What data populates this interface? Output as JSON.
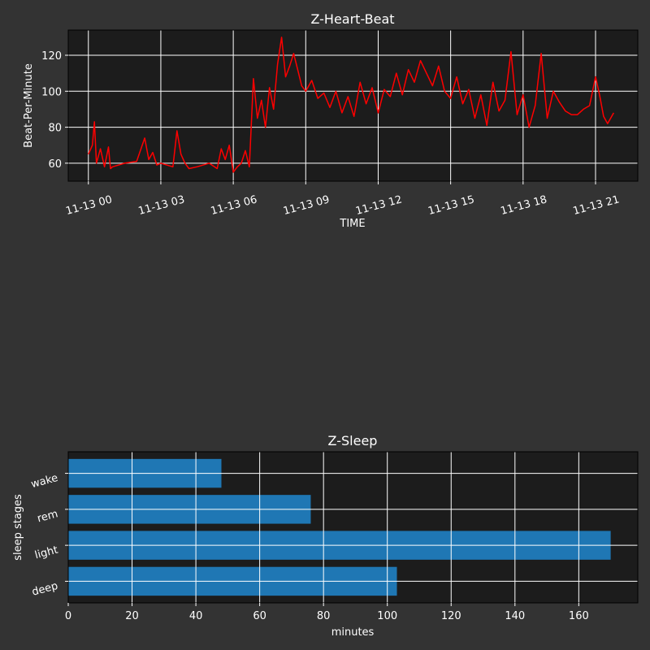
{
  "theme": {
    "figure_bg": "#333333",
    "axes_bg": "#1c1c1c",
    "grid": "#ffffff",
    "text": "#ffffff",
    "line_color": "#ff0000",
    "bar_color": "#1f77b4"
  },
  "chart_data": [
    {
      "type": "line",
      "title": "Z-Heart-Beat",
      "xlabel": "TIME",
      "ylabel": "Beat-Per-Minute",
      "x_is_time": true,
      "xlim": [
        "2020-11-12 23:10",
        "2020-11-13 22:45"
      ],
      "ylim": [
        50,
        134
      ],
      "grid": true,
      "xticks": [
        {
          "value": "2020-11-13 00:00",
          "label": "11-13 00"
        },
        {
          "value": "2020-11-13 03:00",
          "label": "11-13 03"
        },
        {
          "value": "2020-11-13 06:00",
          "label": "11-13 06"
        },
        {
          "value": "2020-11-13 09:00",
          "label": "11-13 09"
        },
        {
          "value": "2020-11-13 12:00",
          "label": "11-13 12"
        },
        {
          "value": "2020-11-13 15:00",
          "label": "11-13 15"
        },
        {
          "value": "2020-11-13 18:00",
          "label": "11-13 18"
        },
        {
          "value": "2020-11-13 21:00",
          "label": "11-13 21"
        }
      ],
      "yticks": [
        60,
        80,
        100,
        120
      ],
      "series": [
        {
          "x": [
            "2020-11-13 00:00",
            "2020-11-13 00:10",
            "2020-11-13 00:15",
            "2020-11-13 00:20",
            "2020-11-13 00:30",
            "2020-11-13 00:40",
            "2020-11-13 00:50",
            "2020-11-13 00:55",
            "2020-11-13 01:00",
            "2020-11-13 01:30",
            "2020-11-13 02:00",
            "2020-11-13 02:20",
            "2020-11-13 02:30",
            "2020-11-13 02:40",
            "2020-11-13 02:50",
            "2020-11-13 03:00",
            "2020-11-13 03:30",
            "2020-11-13 03:40",
            "2020-11-13 03:50",
            "2020-11-13 04:00",
            "2020-11-13 04:10",
            "2020-11-13 04:30",
            "2020-11-13 05:00",
            "2020-11-13 05:20",
            "2020-11-13 05:30",
            "2020-11-13 05:40",
            "2020-11-13 05:50",
            "2020-11-13 06:00",
            "2020-11-13 06:10",
            "2020-11-13 06:20",
            "2020-11-13 06:30",
            "2020-11-13 06:40",
            "2020-11-13 06:50",
            "2020-11-13 07:00",
            "2020-11-13 07:10",
            "2020-11-13 07:20",
            "2020-11-13 07:30",
            "2020-11-13 07:40",
            "2020-11-13 07:50",
            "2020-11-13 08:00",
            "2020-11-13 08:10",
            "2020-11-13 08:20",
            "2020-11-13 08:30",
            "2020-11-13 08:40",
            "2020-11-13 08:50",
            "2020-11-13 09:00",
            "2020-11-13 09:15",
            "2020-11-13 09:30",
            "2020-11-13 09:45",
            "2020-11-13 10:00",
            "2020-11-13 10:15",
            "2020-11-13 10:30",
            "2020-11-13 10:45",
            "2020-11-13 11:00",
            "2020-11-13 11:15",
            "2020-11-13 11:30",
            "2020-11-13 11:45",
            "2020-11-13 12:00",
            "2020-11-13 12:15",
            "2020-11-13 12:30",
            "2020-11-13 12:45",
            "2020-11-13 13:00",
            "2020-11-13 13:15",
            "2020-11-13 13:30",
            "2020-11-13 13:45",
            "2020-11-13 14:00",
            "2020-11-13 14:15",
            "2020-11-13 14:30",
            "2020-11-13 14:45",
            "2020-11-13 15:00",
            "2020-11-13 15:15",
            "2020-11-13 15:30",
            "2020-11-13 15:45",
            "2020-11-13 16:00",
            "2020-11-13 16:15",
            "2020-11-13 16:30",
            "2020-11-13 16:45",
            "2020-11-13 17:00",
            "2020-11-13 17:15",
            "2020-11-13 17:30",
            "2020-11-13 17:45",
            "2020-11-13 18:00",
            "2020-11-13 18:15",
            "2020-11-13 18:30",
            "2020-11-13 18:45",
            "2020-11-13 19:00",
            "2020-11-13 19:15",
            "2020-11-13 19:30",
            "2020-11-13 19:45",
            "2020-11-13 20:00",
            "2020-11-13 20:15",
            "2020-11-13 20:30",
            "2020-11-13 20:45",
            "2020-11-13 21:00",
            "2020-11-13 21:10",
            "2020-11-13 21:20",
            "2020-11-13 21:30",
            "2020-11-13 21:45"
          ],
          "y": [
            65,
            70,
            83,
            60,
            68,
            58,
            69,
            57,
            58,
            60,
            61,
            74,
            62,
            66,
            59,
            60,
            58,
            78,
            65,
            60,
            57,
            58,
            60,
            57,
            68,
            62,
            70,
            55,
            58,
            60,
            67,
            58,
            107,
            85,
            95,
            80,
            102,
            90,
            115,
            130,
            108,
            114,
            121,
            112,
            103,
            100,
            106,
            96,
            99,
            91,
            100,
            88,
            97,
            86,
            105,
            93,
            102,
            88,
            101,
            97,
            110,
            98,
            112,
            105,
            117,
            110,
            103,
            114,
            100,
            96,
            108,
            93,
            101,
            85,
            98,
            81,
            105,
            89,
            95,
            122,
            87,
            98,
            80,
            92,
            121,
            85,
            100,
            94,
            89,
            87,
            87,
            90,
            92,
            108,
            98,
            86,
            82,
            88
          ]
        }
      ]
    },
    {
      "type": "bar",
      "orientation": "horizontal",
      "title": "Z-Sleep",
      "xlabel": "minutes",
      "ylabel": "sleep stages",
      "categories": [
        "deep",
        "light",
        "rem",
        "wake"
      ],
      "values": [
        103,
        170,
        76,
        48
      ],
      "xlim": [
        0,
        178.5
      ],
      "xticks": [
        0,
        20,
        40,
        60,
        80,
        100,
        120,
        140,
        160
      ],
      "grid": true
    }
  ]
}
